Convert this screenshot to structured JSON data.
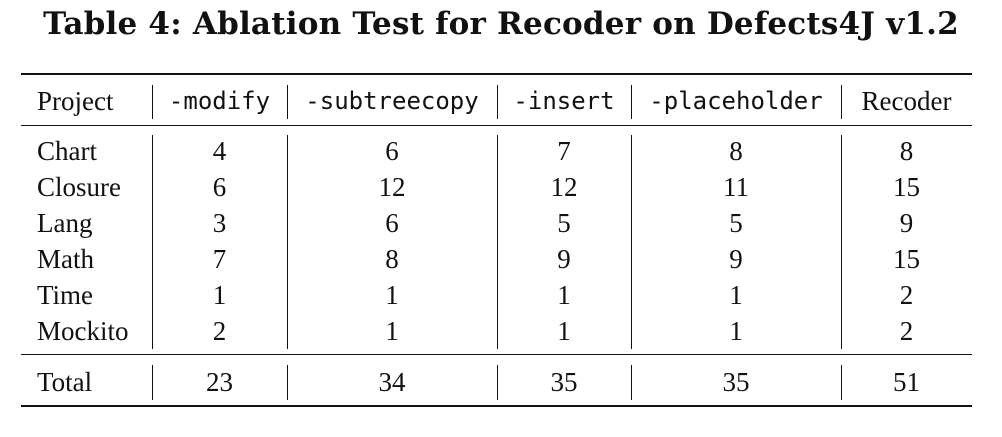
{
  "caption": "Table 4: Ablation Test for Recoder on Defects4J v1.2",
  "columns": [
    "Project",
    "-modify",
    "-subtreecopy",
    "-insert",
    "-placeholder",
    "Recoder"
  ],
  "rows": [
    {
      "project": "Chart",
      "values": [
        "4",
        "6",
        "7",
        "8",
        "8"
      ]
    },
    {
      "project": "Closure",
      "values": [
        "6",
        "12",
        "12",
        "11",
        "15"
      ]
    },
    {
      "project": "Lang",
      "values": [
        "3",
        "6",
        "5",
        "5",
        "9"
      ]
    },
    {
      "project": "Math",
      "values": [
        "7",
        "8",
        "9",
        "9",
        "15"
      ]
    },
    {
      "project": "Time",
      "values": [
        "1",
        "1",
        "1",
        "1",
        "2"
      ]
    },
    {
      "project": "Mockito",
      "values": [
        "2",
        "1",
        "1",
        "1",
        "2"
      ]
    }
  ],
  "total": {
    "project": "Total",
    "values": [
      "23",
      "34",
      "35",
      "35",
      "51"
    ]
  }
}
